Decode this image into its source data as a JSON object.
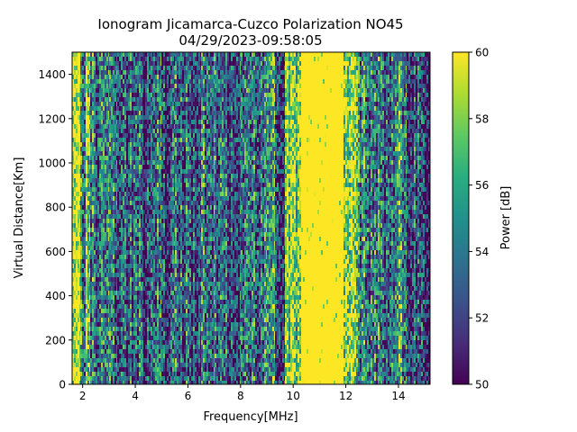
{
  "chart_data": {
    "type": "heatmap",
    "title": "Ionogram Jicamarca-Cuzco Polarization NO45",
    "subtitle": "04/29/2023-09:58:05",
    "xlabel": "Frequency[MHz]",
    "ylabel": "Virtual Distance[Km]",
    "xlim": [
      1.6,
      15.2
    ],
    "ylim": [
      0,
      1500
    ],
    "x_ticks": [
      2,
      4,
      6,
      8,
      10,
      12,
      14
    ],
    "y_ticks": [
      0,
      200,
      400,
      600,
      800,
      1000,
      1200,
      1400
    ],
    "x_tick_labels": [
      "2",
      "4",
      "6",
      "8",
      "10",
      "12",
      "14"
    ],
    "y_tick_labels": [
      "0",
      "200",
      "400",
      "600",
      "800",
      "1000",
      "1200",
      "1400"
    ],
    "colormap": "viridis",
    "colorbar": {
      "label": "Power [dB]",
      "range": [
        50,
        60
      ],
      "ticks": [
        50,
        52,
        54,
        56,
        58,
        60
      ],
      "tick_labels": [
        "50",
        "52",
        "54",
        "56",
        "58",
        "60"
      ]
    },
    "columns": [
      {
        "f": [
          1.6,
          1.9
        ],
        "p": 58.5
      },
      {
        "f": [
          1.9,
          2.1
        ],
        "p": 55.0
      },
      {
        "f": [
          2.1,
          2.3
        ],
        "p": 57.5
      },
      {
        "f": [
          2.3,
          2.7
        ],
        "p": 54.0
      },
      {
        "f": [
          2.7,
          3.0
        ],
        "p": 55.5
      },
      {
        "f": [
          3.0,
          3.3
        ],
        "p": 53.5
      },
      {
        "f": [
          3.3,
          3.8
        ],
        "p": 52.5
      },
      {
        "f": [
          3.8,
          4.3
        ],
        "p": 53.0
      },
      {
        "f": [
          4.3,
          4.7
        ],
        "p": 51.5
      },
      {
        "f": [
          4.7,
          5.0
        ],
        "p": 54.5
      },
      {
        "f": [
          5.0,
          5.5
        ],
        "p": 52.5
      },
      {
        "f": [
          5.5,
          6.0
        ],
        "p": 53.5
      },
      {
        "f": [
          6.0,
          6.5
        ],
        "p": 52.0
      },
      {
        "f": [
          6.5,
          7.0
        ],
        "p": 54.0
      },
      {
        "f": [
          7.0,
          7.5
        ],
        "p": 53.5
      },
      {
        "f": [
          7.5,
          8.0
        ],
        "p": 52.5
      },
      {
        "f": [
          8.0,
          8.5
        ],
        "p": 54.5
      },
      {
        "f": [
          8.5,
          9.0
        ],
        "p": 53.5
      },
      {
        "f": [
          9.0,
          9.3
        ],
        "p": 56.5
      },
      {
        "f": [
          9.3,
          9.7
        ],
        "p": 52.0
      },
      {
        "f": [
          9.7,
          10.3
        ],
        "p": 58.0
      },
      {
        "f": [
          10.3,
          11.9
        ],
        "p": 60.0
      },
      {
        "f": [
          11.9,
          12.4
        ],
        "p": 58.5
      },
      {
        "f": [
          12.4,
          12.8
        ],
        "p": 55.0
      },
      {
        "f": [
          12.8,
          13.3
        ],
        "p": 54.0
      },
      {
        "f": [
          13.3,
          13.8
        ],
        "p": 53.0
      },
      {
        "f": [
          13.8,
          14.3
        ],
        "p": 55.0
      },
      {
        "f": [
          14.3,
          14.8
        ],
        "p": 52.5
      },
      {
        "f": [
          14.8,
          15.2
        ],
        "p": 51.5
      }
    ]
  }
}
